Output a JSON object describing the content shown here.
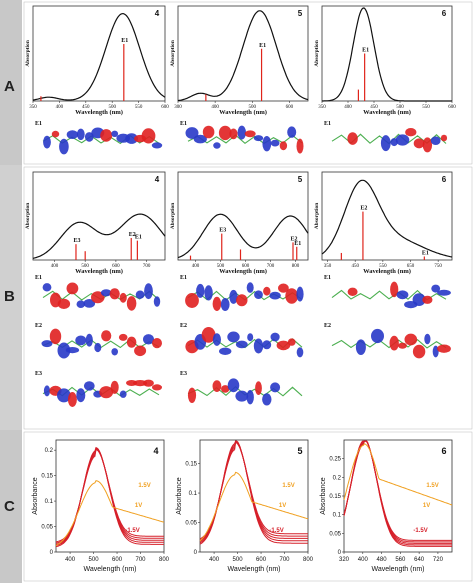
{
  "panels": {
    "A": {
      "letter": "A",
      "xlabel": "Wavelength (nm)",
      "ylabel": "Absorption",
      "charts": [
        {
          "id": "4",
          "ticks": [
            350,
            400,
            450,
            500,
            550,
            600
          ],
          "range": [
            350,
            600
          ],
          "peak": {
            "x": 520,
            "w": 32,
            "h": 0.92
          },
          "side": [
            {
              "x": 380,
              "w": 18,
              "h": 0.04
            }
          ],
          "sticks": [
            {
              "x": 522,
              "h": 0.6,
              "label": "E1"
            },
            {
              "x": 365,
              "h": 0.05,
              "label": ""
            }
          ]
        },
        {
          "id": "5",
          "ticks": [
            300,
            400,
            500,
            600
          ],
          "range": [
            300,
            650
          ],
          "peak": {
            "x": 520,
            "w": 45,
            "h": 0.95
          },
          "side": [
            {
              "x": 360,
              "w": 25,
              "h": 0.08
            }
          ],
          "sticks": [
            {
              "x": 525,
              "h": 0.55,
              "label": "E1"
            },
            {
              "x": 375,
              "h": 0.07,
              "label": ""
            }
          ]
        },
        {
          "id": "6",
          "ticks": [
            350,
            400,
            450,
            500,
            550,
            600
          ],
          "range": [
            350,
            600
          ],
          "peak": {
            "x": 430,
            "w": 20,
            "h": 0.98
          },
          "side": [],
          "sticks": [
            {
              "x": 432,
              "h": 0.5,
              "label": "E1"
            },
            {
              "x": 420,
              "h": 0.12,
              "label": ""
            }
          ]
        }
      ],
      "orbitals": [
        [
          "E1"
        ],
        [
          "E1"
        ],
        [
          "E1"
        ]
      ]
    },
    "B": {
      "letter": "B",
      "xlabel": "Wavelength (nm)",
      "ylabel": "Absorption",
      "charts": [
        {
          "id": "4",
          "ticks": [
            400,
            500,
            600,
            700
          ],
          "range": [
            330,
            760
          ],
          "bands": [
            {
              "x": 480,
              "w": 60,
              "h": 0.42
            },
            {
              "x": 680,
              "w": 70,
              "h": 0.52
            }
          ],
          "sticks": [
            {
              "x": 470,
              "h": 0.18,
              "label": "E3"
            },
            {
              "x": 650,
              "h": 0.25,
              "label": "E2"
            },
            {
              "x": 670,
              "h": 0.22,
              "label": "E1"
            },
            {
              "x": 500,
              "h": 0.1,
              "label": ""
            }
          ]
        },
        {
          "id": "5",
          "ticks": [
            400,
            500,
            600,
            700,
            800
          ],
          "range": [
            330,
            850
          ],
          "bands": [
            {
              "x": 500,
              "w": 70,
              "h": 0.52
            },
            {
              "x": 780,
              "w": 70,
              "h": 0.5
            }
          ],
          "sticks": [
            {
              "x": 505,
              "h": 0.3,
              "label": "E3"
            },
            {
              "x": 790,
              "h": 0.2,
              "label": "E2"
            },
            {
              "x": 805,
              "h": 0.15,
              "label": "E1"
            },
            {
              "x": 580,
              "h": 0.12,
              "label": ""
            },
            {
              "x": 380,
              "h": 0.05,
              "label": ""
            }
          ]
        },
        {
          "id": "6",
          "ticks": [
            350,
            450,
            550,
            650,
            750
          ],
          "range": [
            330,
            800
          ],
          "bands": [
            {
              "x": 470,
              "w": 60,
              "h": 0.75
            },
            {
              "x": 580,
              "w": 110,
              "h": 0.25
            }
          ],
          "sticks": [
            {
              "x": 478,
              "h": 0.55,
              "label": "E2"
            },
            {
              "x": 700,
              "h": 0.04,
              "label": "E1"
            },
            {
              "x": 400,
              "h": 0.08,
              "label": ""
            }
          ]
        }
      ],
      "orbitals": [
        [
          "E1",
          "E2",
          "E3"
        ],
        [
          "E1",
          "E2",
          "E3"
        ],
        [
          "E1",
          "E2"
        ]
      ]
    },
    "C": {
      "letter": "C",
      "xlabel": "Wavelength (nm)",
      "ylabel": "Absorbance",
      "charts": [
        {
          "id": "4",
          "xticks": [
            400,
            500,
            600,
            700,
            800
          ],
          "range": [
            340,
            800
          ],
          "yticks": [
            0,
            0.05,
            0.1,
            0.15,
            0.2
          ],
          "ymax": 0.22,
          "peak": 510,
          "red_heights": [
            0.19,
            0.185,
            0.18,
            0.175,
            0.17
          ],
          "orange_height": 0.13,
          "labels": [
            "1.5V",
            "1V",
            "-1.5V"
          ]
        },
        {
          "id": "5",
          "xticks": [
            400,
            500,
            600,
            700,
            800
          ],
          "range": [
            340,
            800
          ],
          "yticks": [
            0,
            0.05,
            0.1,
            0.15
          ],
          "ymax": 0.19,
          "peak": 490,
          "red_heights": [
            0.175,
            0.17,
            0.165,
            0.16,
            0.155
          ],
          "orange_height": 0.125,
          "labels": [
            "1.5V",
            "1V",
            "-1.5V"
          ]
        },
        {
          "id": "6",
          "xticks": [
            320,
            400,
            480,
            560,
            640,
            720
          ],
          "range": [
            320,
            780
          ],
          "yticks": [
            0,
            0.05,
            0.1,
            0.15,
            0.2,
            0.25
          ],
          "ymax": 0.3,
          "peak": 405,
          "red_heights": [
            0.29,
            0.285,
            0.28,
            0.275,
            0.27
          ],
          "orange_height": 0.28,
          "labels": [
            "1.5V",
            "1V",
            "-1.5V"
          ]
        }
      ]
    }
  },
  "colors": {
    "spectrum": "#111111",
    "stick": "#e0241b",
    "red": "#d6202a",
    "orange": "#f0a020",
    "lobe_red": "#e02020",
    "lobe_blue": "#2838c8",
    "stick_green": "#4caf50"
  }
}
